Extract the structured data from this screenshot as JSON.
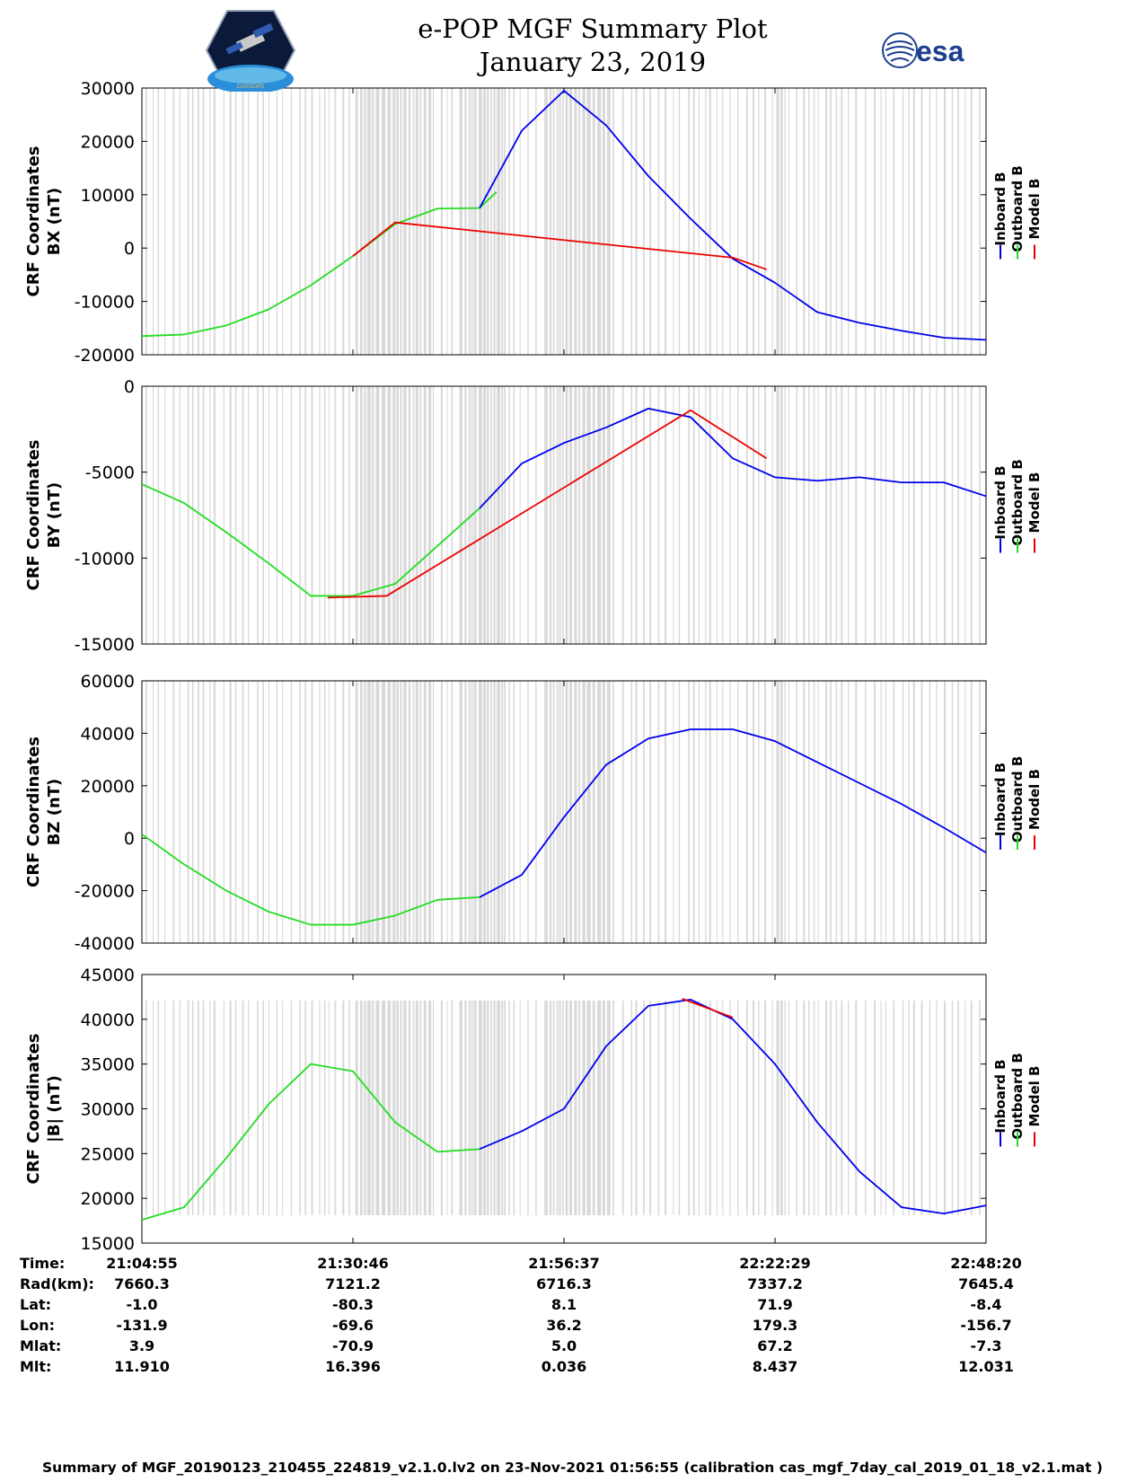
{
  "title": "e-POP MGF Summary Plot",
  "date": "January 23, 2019",
  "esa_logo_text": "esa",
  "cassiope_logo_text": "CASSIOPE",
  "footer": "Summary of MGF_20190123_210455_224819_v2.1.0.lv2 on 23-Nov-2021 01:56:55 (calibration cas_mgf_7day_cal_2019_01_18_v2.1.mat )",
  "colors": {
    "inboard": "#0000ee",
    "outboard": "#22dd22",
    "model": "#ee0000",
    "gap": "#d9d9d9"
  },
  "legend": [
    "Inboard B",
    "Outboard B",
    "Model B"
  ],
  "time_ticks": [
    "21:04:55",
    "21:30:46",
    "21:56:37",
    "22:22:29",
    "22:48:20"
  ],
  "table": {
    "row_labels": [
      "Time:",
      "Rad(km):",
      "Lat:",
      "Lon:",
      "Mlat:",
      "Mlt:"
    ],
    "columns": [
      [
        "21:04:55",
        "7660.3",
        "-1.0",
        "-131.9",
        "3.9",
        "11.910"
      ],
      [
        "21:30:46",
        "7121.2",
        "-80.3",
        "-69.6",
        "-70.9",
        "16.396"
      ],
      [
        "21:56:37",
        "6716.3",
        "8.1",
        "36.2",
        "5.0",
        "0.036"
      ],
      [
        "22:22:29",
        "7337.2",
        "71.9",
        "179.3",
        "67.2",
        "8.437"
      ],
      [
        "22:48:20",
        "7645.4",
        "-8.4",
        "-156.7",
        "-7.3",
        "12.031"
      ]
    ]
  },
  "chart_data": [
    {
      "type": "line",
      "title": "BX",
      "ylabel": [
        "CRF Coordinates",
        "BX (nT)"
      ],
      "ylim": [
        -20000,
        30000
      ],
      "yticks": [
        -20000,
        -10000,
        0,
        10000,
        20000,
        30000
      ],
      "x": [
        0,
        0.05,
        0.1,
        0.15,
        0.2,
        0.25,
        0.3,
        0.35,
        0.4,
        0.45,
        0.5,
        0.55,
        0.6,
        0.65,
        0.7,
        0.75,
        0.8,
        0.85,
        0.9,
        0.95,
        1.0
      ],
      "series": [
        {
          "name": "Outboard B",
          "color": "#22dd22",
          "x": [
            0,
            0.05,
            0.1,
            0.15,
            0.2,
            0.25,
            0.3,
            0.35,
            0.4,
            0.42
          ],
          "values": [
            -16500,
            -16200,
            -14500,
            -11500,
            -7000,
            -1500,
            4500,
            7400,
            7500,
            10500
          ]
        },
        {
          "name": "Inboard B",
          "color": "#0000ee",
          "x": [
            0.4,
            0.45,
            0.5,
            0.55,
            0.6,
            0.65,
            0.7,
            0.75,
            0.8,
            0.85,
            0.9,
            0.95,
            1.0
          ],
          "values": [
            7500,
            22000,
            29500,
            23000,
            13500,
            5500,
            -2000,
            -6500,
            -12000,
            -14000,
            -15500,
            -16800,
            -17200
          ]
        },
        {
          "name": "Model B",
          "color": "#ee0000",
          "x": [
            0.25,
            0.3,
            0.7,
            0.74
          ],
          "values": [
            -1500,
            4800,
            -1800,
            -4000
          ]
        }
      ]
    },
    {
      "type": "line",
      "title": "BY",
      "ylabel": [
        "CRF Coordinates",
        "BY (nT)"
      ],
      "ylim": [
        -15000,
        0
      ],
      "yticks": [
        -15000,
        -10000,
        -5000,
        0
      ],
      "series": [
        {
          "name": "Outboard B",
          "color": "#22dd22",
          "x": [
            0,
            0.05,
            0.1,
            0.15,
            0.2,
            0.25,
            0.3,
            0.35,
            0.4
          ],
          "values": [
            -5700,
            -6800,
            -8500,
            -10300,
            -12200,
            -12200,
            -11500,
            -9300,
            -7100
          ]
        },
        {
          "name": "Inboard B",
          "color": "#0000ee",
          "x": [
            0.4,
            0.45,
            0.5,
            0.55,
            0.6,
            0.65,
            0.7,
            0.75,
            0.8,
            0.85,
            0.9,
            0.95,
            1.0
          ],
          "values": [
            -7100,
            -4500,
            -3300,
            -2400,
            -1300,
            -1800,
            -4200,
            -5300,
            -5500,
            -5300,
            -5600,
            -5600,
            -6400
          ]
        },
        {
          "name": "Model B",
          "color": "#ee0000",
          "x": [
            0.22,
            0.29,
            0.65,
            0.74
          ],
          "values": [
            -12300,
            -12200,
            -1400,
            -4200
          ]
        }
      ]
    },
    {
      "type": "line",
      "title": "BZ",
      "ylabel": [
        "CRF Coordinates",
        "BZ (nT)"
      ],
      "ylim": [
        -40000,
        60000
      ],
      "yticks": [
        -40000,
        -20000,
        0,
        20000,
        40000,
        60000
      ],
      "series": [
        {
          "name": "Outboard B",
          "color": "#22dd22",
          "x": [
            0,
            0.05,
            0.1,
            0.15,
            0.2,
            0.25,
            0.3,
            0.35,
            0.4
          ],
          "values": [
            1500,
            -10000,
            -20000,
            -28000,
            -33000,
            -33000,
            -29500,
            -23500,
            -22500
          ]
        },
        {
          "name": "Inboard B",
          "color": "#0000ee",
          "x": [
            0.4,
            0.45,
            0.5,
            0.55,
            0.6,
            0.65,
            0.7,
            0.75,
            0.8,
            0.85,
            0.9,
            0.95,
            1.0
          ],
          "values": [
            -22500,
            -14000,
            8000,
            28000,
            38000,
            41500,
            41500,
            37000,
            29000,
            21000,
            13000,
            4000,
            -5500
          ]
        },
        {
          "name": "Model B",
          "color": "#ee0000",
          "x": [],
          "values": []
        }
      ]
    },
    {
      "type": "line",
      "title": "|B|",
      "ylabel": [
        "CRF Coordinates",
        "|B| (nT)"
      ],
      "ylim": [
        15000,
        45000
      ],
      "yticks": [
        15000,
        20000,
        25000,
        30000,
        35000,
        40000,
        45000
      ],
      "series": [
        {
          "name": "Outboard B",
          "color": "#22dd22",
          "x": [
            0,
            0.05,
            0.1,
            0.15,
            0.2,
            0.25,
            0.3,
            0.35,
            0.4
          ],
          "values": [
            17600,
            19000,
            24500,
            30500,
            35000,
            34200,
            28500,
            25200,
            25500
          ]
        },
        {
          "name": "Inboard B",
          "color": "#0000ee",
          "x": [
            0.4,
            0.45,
            0.5,
            0.55,
            0.6,
            0.65,
            0.7,
            0.75,
            0.8,
            0.85,
            0.9,
            0.95,
            1.0
          ],
          "values": [
            25500,
            27500,
            30000,
            37000,
            41500,
            42200,
            40000,
            35000,
            28500,
            23000,
            19000,
            18300,
            19200
          ]
        },
        {
          "name": "Model B",
          "color": "#ee0000",
          "x": [
            0.64,
            0.7
          ],
          "values": [
            42300,
            40200
          ]
        }
      ]
    }
  ]
}
